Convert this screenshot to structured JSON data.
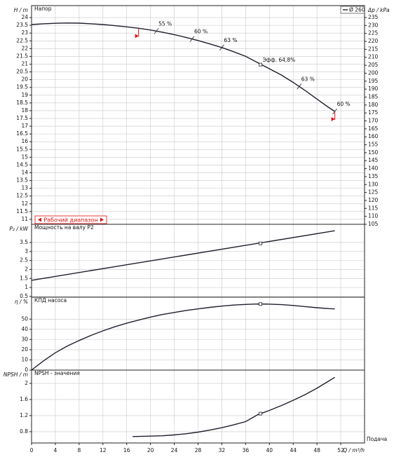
{
  "chart_data": [
    {
      "type": "line",
      "panel_title": "Напор",
      "ylabel": "H / m",
      "y2label": "Δp / kPa",
      "xlim": [
        0,
        56
      ],
      "ylim": [
        10.68,
        24.77
      ],
      "y2lim": [
        105,
        242.5
      ],
      "yticks": [
        11,
        11.5,
        12,
        12.5,
        13,
        13.5,
        14,
        14.5,
        15,
        15.5,
        16,
        16.5,
        17,
        17.5,
        18,
        18.5,
        19,
        19.5,
        20,
        20.5,
        21,
        21.5,
        22,
        22.5,
        23,
        23.5,
        24
      ],
      "y2ticks": [
        105,
        110,
        115,
        120,
        125,
        130,
        135,
        140,
        145,
        150,
        155,
        160,
        165,
        170,
        175,
        180,
        185,
        190,
        195,
        200,
        205,
        210,
        215,
        220,
        225,
        230,
        235
      ],
      "x": [
        0,
        2,
        4,
        6,
        8,
        10,
        12,
        14,
        16,
        18,
        20,
        22,
        24,
        26,
        28,
        30,
        32,
        34,
        36,
        38,
        40,
        42,
        44,
        46,
        48,
        50,
        51
      ],
      "series": [
        {
          "name": "Ø 260",
          "color": "#1f1f2e",
          "values": [
            23.55,
            23.6,
            23.63,
            23.65,
            23.64,
            23.6,
            23.55,
            23.48,
            23.4,
            23.31,
            23.2,
            23.06,
            22.9,
            22.72,
            22.52,
            22.3,
            22.07,
            21.8,
            21.5,
            21.1,
            20.7,
            20.3,
            19.82,
            19.3,
            18.75,
            18.2,
            17.95
          ]
        }
      ],
      "point": {
        "x": 38.5,
        "y": 20.97,
        "label": "Эфф. 64,8%"
      },
      "annotations": [
        {
          "text": "55 %",
          "x": 21,
          "y": 23.13
        },
        {
          "text": "60 %",
          "x": 27,
          "y": 22.62
        },
        {
          "text": "63 %",
          "x": 32,
          "y": 22.07
        },
        {
          "text": "63 %",
          "x": 45,
          "y": 19.56
        },
        {
          "text": "60 %",
          "x": 51,
          "y": 17.95
        }
      ],
      "operating_range": {
        "label": "Рабочий диапазон",
        "x": [
          18,
          51
        ],
        "color": "#e01010"
      }
    },
    {
      "type": "line",
      "panel_title": "Мощность на валу P2",
      "ylabel": "P₂ / kW",
      "xlim": [
        0,
        56
      ],
      "ylim": [
        0.46,
        4.51
      ],
      "yticks": [
        0.5,
        1,
        1.5,
        2,
        2.5,
        3,
        3.5
      ],
      "x": [
        0,
        51
      ],
      "values": [
        1.4,
        4.15
      ],
      "point": {
        "x": 38.5,
        "y": 3.45
      }
    },
    {
      "type": "line",
      "panel_title": "КПД насоса",
      "ylabel": "η / %",
      "xlim": [
        0,
        56
      ],
      "ylim": [
        0,
        71.5
      ],
      "yticks": [
        0,
        10,
        20,
        30,
        40,
        50
      ],
      "x": [
        0,
        2,
        4,
        6,
        8,
        10,
        12,
        14,
        16,
        18,
        20,
        22,
        24,
        26,
        28,
        30,
        32,
        34,
        36,
        38,
        40,
        42,
        44,
        46,
        48,
        50,
        51
      ],
      "values": [
        0,
        9,
        17,
        23.5,
        29,
        34,
        38.5,
        42.5,
        46,
        49,
        52,
        54.5,
        56.5,
        58.5,
        60,
        61.5,
        62.8,
        63.8,
        64.4,
        64.8,
        64.7,
        64.2,
        63.4,
        62.3,
        61.2,
        60.3,
        60
      ],
      "point": {
        "x": 38.5,
        "y": 64.8
      }
    },
    {
      "type": "line",
      "panel_title": "NPSH - значения",
      "ylabel": "NPSH / m",
      "xlabel": "Q / m³/h",
      "xnote": "Подача",
      "xlim": [
        0,
        56
      ],
      "ylim": [
        0.52,
        2.33
      ],
      "yticks": [
        0.8,
        1.2,
        1.6,
        2
      ],
      "xticks": [
        0,
        4,
        8,
        12,
        16,
        20,
        24,
        28,
        32,
        36,
        40,
        44,
        48,
        52
      ],
      "x": [
        17,
        20,
        22,
        24,
        26,
        28,
        30,
        32,
        34,
        36,
        38,
        40,
        42,
        44,
        46,
        48,
        50,
        51
      ],
      "values": [
        0.68,
        0.69,
        0.7,
        0.72,
        0.75,
        0.79,
        0.84,
        0.9,
        0.97,
        1.05,
        1.22,
        1.33,
        1.45,
        1.58,
        1.72,
        1.88,
        2.06,
        2.15
      ],
      "point": {
        "x": 38.5,
        "y": 1.25
      }
    }
  ]
}
